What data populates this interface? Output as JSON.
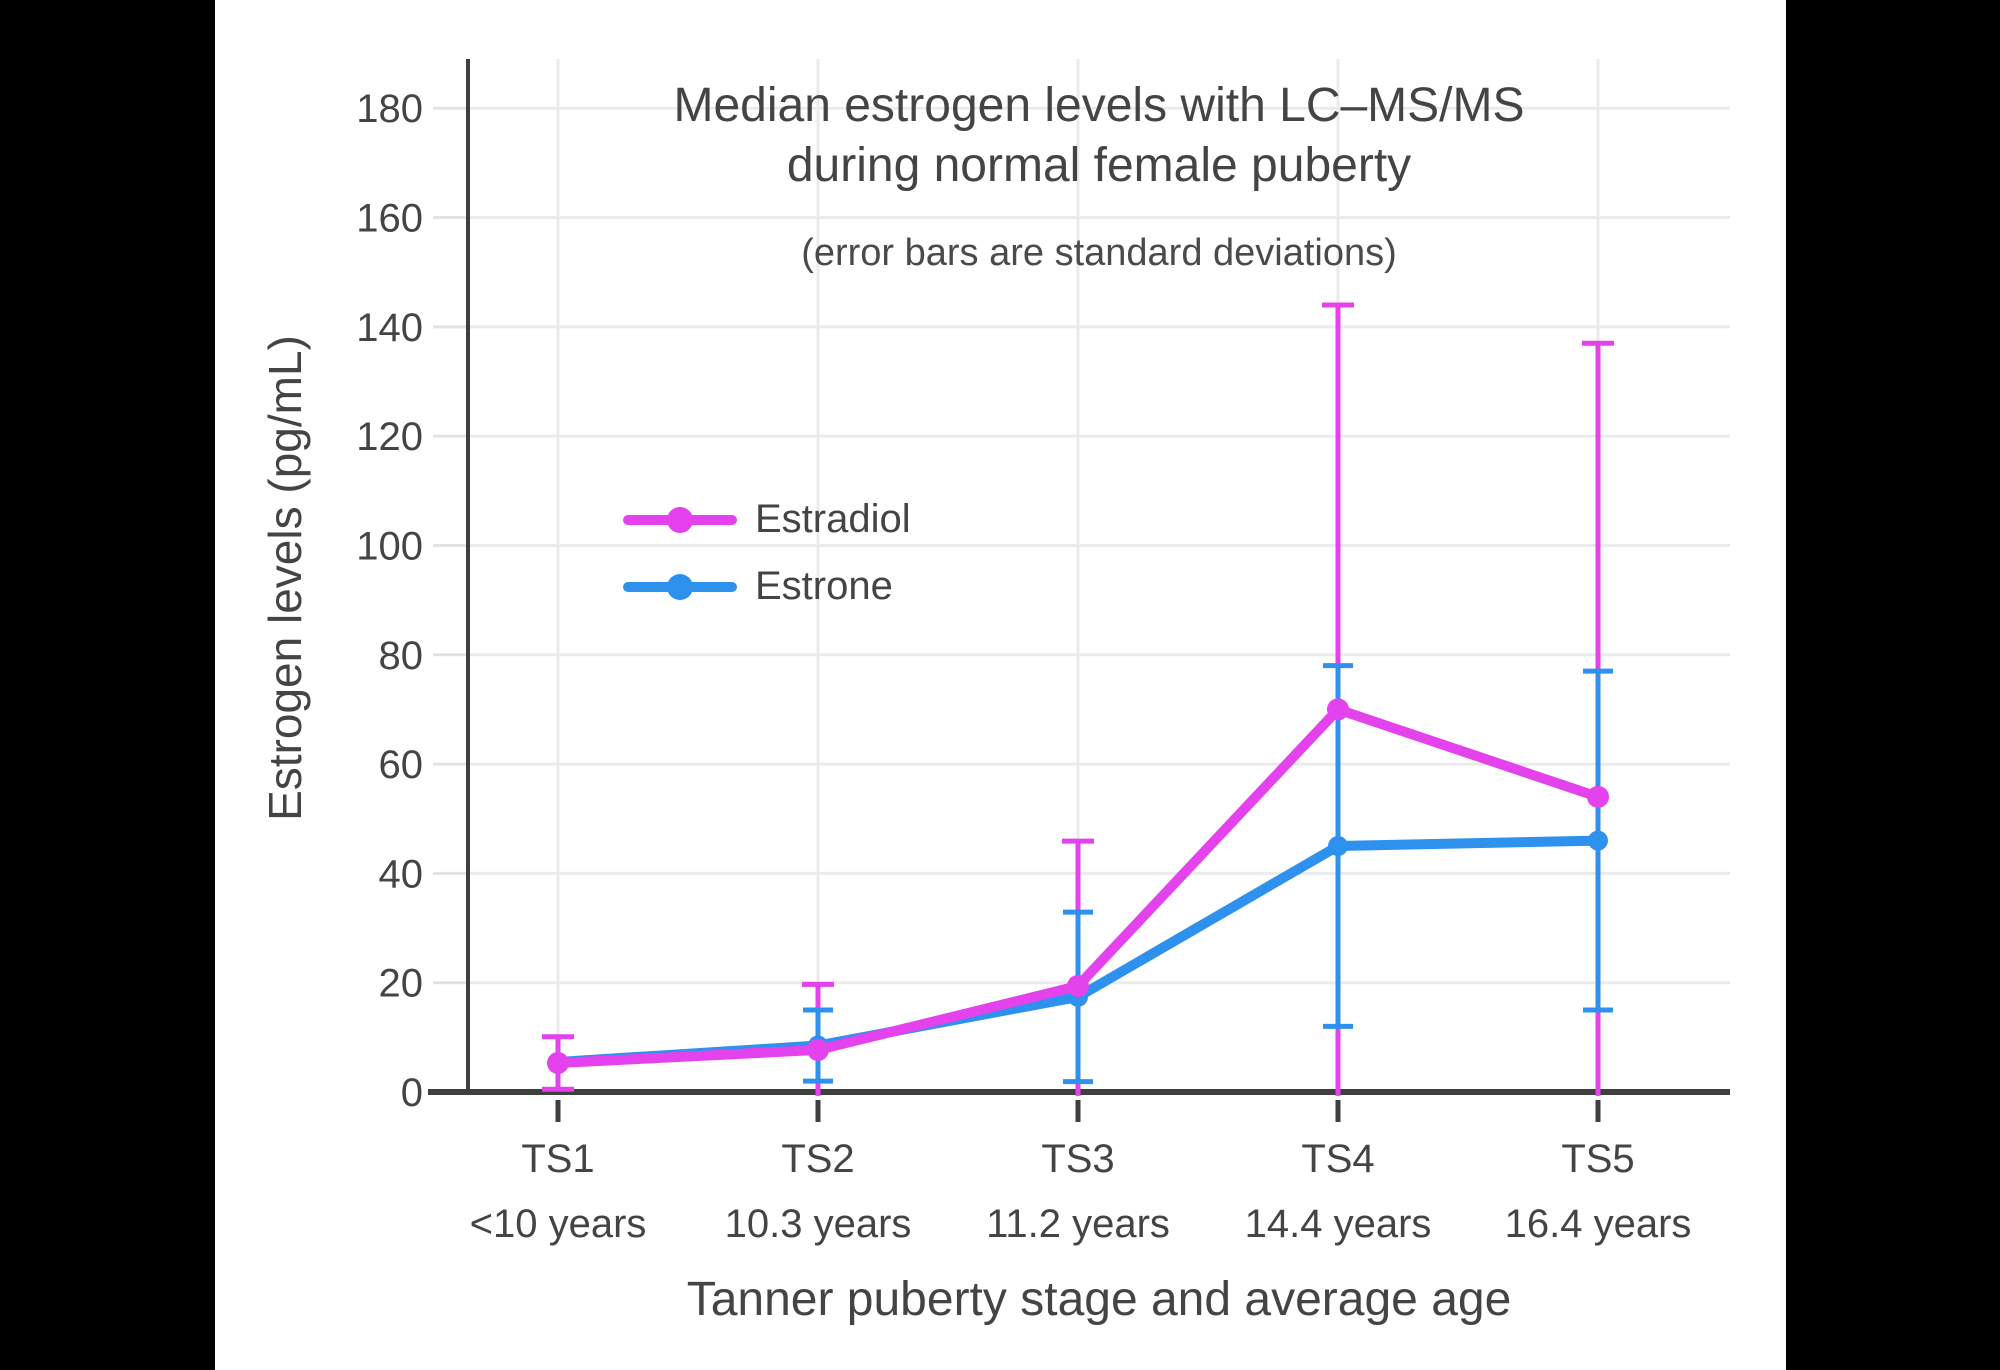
{
  "window": {
    "background": "#000000",
    "panel_background": "#ffffff"
  },
  "chart_data": {
    "type": "line",
    "title": "Median estrogen levels with LC–MS/MS during normal female puberty",
    "title_lines": [
      "Median estrogen levels with LC–MS/MS",
      "during normal female puberty"
    ],
    "subtitle": "(error bars are standard deviations)",
    "xlabel": "Tanner puberty stage and average age",
    "ylabel": "Estrogen levels (pg/mL)",
    "categories": [
      "TS1",
      "TS2",
      "TS3",
      "TS4",
      "TS5"
    ],
    "category_ages": [
      "<10 years",
      "10.3 years",
      "11.2 years",
      "14.4 years",
      "16.4 years"
    ],
    "ylim": [
      0,
      189
    ],
    "yticks": [
      0,
      20,
      40,
      60,
      80,
      100,
      120,
      140,
      160,
      180
    ],
    "grid": true,
    "legend_position": "inside-upper-left",
    "error_bars": "standard deviations, clipped at y=0",
    "series": [
      {
        "name": "Estradiol",
        "color": "#E342EC",
        "values": [
          5.3,
          7.7,
          19.4,
          70,
          54
        ],
        "sd": [
          4.8,
          12,
          26.5,
          74,
          83
        ]
      },
      {
        "name": "Estrone",
        "color": "#2E91ED",
        "values": [
          5.5,
          8.5,
          17.4,
          45,
          46
        ],
        "sd": [
          null,
          6.5,
          15.5,
          33,
          31
        ]
      }
    ],
    "text_color": "#444444",
    "grid_color": "#EBEBEB",
    "axis_color": "#3F3F3F"
  }
}
